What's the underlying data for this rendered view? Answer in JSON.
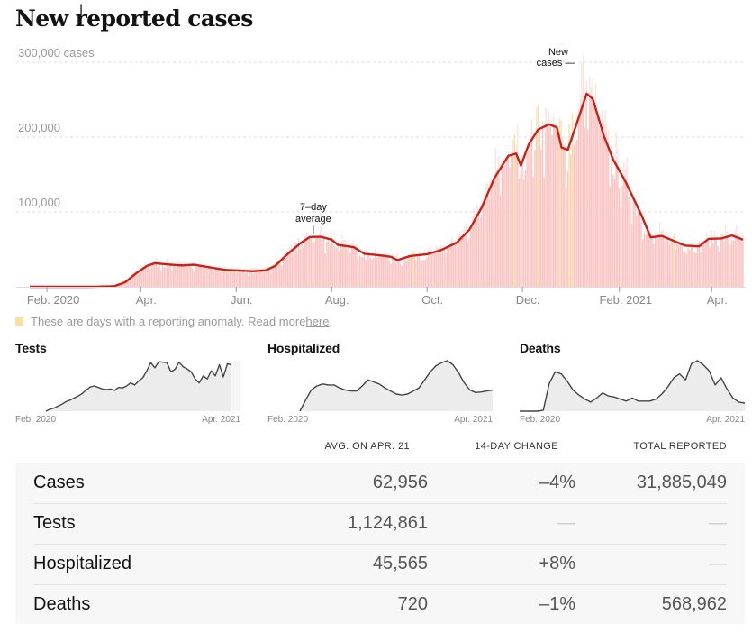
{
  "page": {
    "title": "New reported cases",
    "legend_text": "These are days with a reporting anomaly. Read more ",
    "legend_link": "here",
    "legend_suffix": ".",
    "colors": {
      "bar": "#f8c8c6",
      "bar_light": "#fbe3e1",
      "anomaly": "#fbe0a0",
      "line": "#cf1f14",
      "grid": "#dddddd",
      "small_fill": "#ececec",
      "small_line": "#444444",
      "table_bg": "#f7f7f7"
    }
  },
  "chart_data": [
    {
      "id": "new-cases",
      "type": "bar",
      "title": "New reported cases",
      "xlabel": "",
      "ylabel": "cases",
      "ylim": [
        0,
        300000
      ],
      "yticks": [
        {
          "value": 300000,
          "label": "300,000 cases"
        },
        {
          "value": 200000,
          "label": "200,000"
        },
        {
          "value": 100000,
          "label": "100,000"
        }
      ],
      "grid": true,
      "x_start": "2020-01-21",
      "x_end": "2021-04-21",
      "xticks": [
        {
          "date": "2020-02-01",
          "label": "Feb. 2020"
        },
        {
          "date": "2020-04-01",
          "label": "Apr."
        },
        {
          "date": "2020-06-01",
          "label": "Jun."
        },
        {
          "date": "2020-08-01",
          "label": "Aug."
        },
        {
          "date": "2020-10-01",
          "label": "Oct."
        },
        {
          "date": "2020-12-01",
          "label": "Dec."
        },
        {
          "date": "2021-02-01",
          "label": "Feb. 2021"
        },
        {
          "date": "2021-04-01",
          "label": "Apr."
        }
      ],
      "annotations": [
        {
          "text": [
            "7–day",
            "average"
          ],
          "date": "2020-07-22",
          "value": 67000,
          "series": "7-day average"
        },
        {
          "text": [
            "New",
            "cases —"
          ],
          "date": "2021-01-08",
          "value": 300000,
          "series": "New cases"
        }
      ],
      "series": [
        {
          "name": "7-day average",
          "type": "line",
          "points": [
            [
              "2020-01-21",
              0
            ],
            [
              "2020-03-01",
              10
            ],
            [
              "2020-03-15",
              700
            ],
            [
              "2020-03-22",
              6000
            ],
            [
              "2020-03-29",
              18000
            ],
            [
              "2020-04-05",
              28000
            ],
            [
              "2020-04-10",
              31500
            ],
            [
              "2020-04-20",
              29500
            ],
            [
              "2020-04-28",
              28500
            ],
            [
              "2020-05-05",
              29500
            ],
            [
              "2020-05-15",
              26000
            ],
            [
              "2020-05-25",
              22500
            ],
            [
              "2020-06-05",
              21500
            ],
            [
              "2020-06-12",
              20800
            ],
            [
              "2020-06-20",
              22000
            ],
            [
              "2020-06-26",
              28000
            ],
            [
              "2020-07-04",
              44000
            ],
            [
              "2020-07-12",
              58000
            ],
            [
              "2020-07-18",
              66500
            ],
            [
              "2020-07-25",
              66800
            ],
            [
              "2020-08-01",
              63000
            ],
            [
              "2020-08-05",
              56000
            ],
            [
              "2020-08-15",
              53000
            ],
            [
              "2020-08-22",
              44000
            ],
            [
              "2020-09-01",
              42000
            ],
            [
              "2020-09-08",
              40000
            ],
            [
              "2020-09-12",
              35500
            ],
            [
              "2020-09-20",
              41000
            ],
            [
              "2020-10-01",
              43500
            ],
            [
              "2020-10-10",
              49000
            ],
            [
              "2020-10-20",
              59000
            ],
            [
              "2020-10-28",
              76000
            ],
            [
              "2020-11-05",
              106000
            ],
            [
              "2020-11-13",
              145000
            ],
            [
              "2020-11-22",
              175000
            ],
            [
              "2020-11-27",
              178000
            ],
            [
              "2020-11-30",
              162000
            ],
            [
              "2020-12-05",
              190000
            ],
            [
              "2020-12-11",
              210000
            ],
            [
              "2020-12-14",
              213000
            ],
            [
              "2020-12-18",
              217000
            ],
            [
              "2020-12-23",
              213000
            ],
            [
              "2020-12-26",
              186000
            ],
            [
              "2020-12-30",
              183000
            ],
            [
              "2021-01-05",
              220000
            ],
            [
              "2021-01-11",
              258000
            ],
            [
              "2021-01-15",
              251000
            ],
            [
              "2021-01-22",
              202000
            ],
            [
              "2021-01-28",
              170000
            ],
            [
              "2021-02-05",
              140000
            ],
            [
              "2021-02-15",
              96000
            ],
            [
              "2021-02-21",
              66000
            ],
            [
              "2021-02-28",
              68000
            ],
            [
              "2021-03-08",
              61000
            ],
            [
              "2021-03-15",
              55000
            ],
            [
              "2021-03-24",
              54000
            ],
            [
              "2021-03-30",
              64000
            ],
            [
              "2021-04-07",
              64500
            ],
            [
              "2021-04-14",
              68500
            ],
            [
              "2021-04-21",
              62956
            ]
          ]
        },
        {
          "name": "New cases",
          "type": "bar",
          "description": "daily reported cases, scattered around the 7-day average",
          "peak_value": 300000,
          "anomaly_dates": [
            "2020-09-22",
            "2020-11-26",
            "2020-12-11",
            "2020-12-25",
            "2020-12-31",
            "2021-01-02",
            "2021-03-08"
          ]
        }
      ]
    },
    {
      "id": "tests",
      "type": "area",
      "title": "Tests",
      "x_start_label": "Feb. 2020",
      "x_end_label": "Apr. 2021",
      "relative_values": [
        0.0,
        0.04,
        0.06,
        0.1,
        0.14,
        0.19,
        0.22,
        0.26,
        0.3,
        0.35,
        0.42,
        0.48,
        0.5,
        0.47,
        0.44,
        0.43,
        0.44,
        0.41,
        0.47,
        0.46,
        0.5,
        0.56,
        0.52,
        0.6,
        0.66,
        0.8,
        0.96,
        0.86,
        0.98,
        0.97,
        0.96,
        0.78,
        0.83,
        0.97,
        0.88,
        0.84,
        0.78,
        0.64,
        0.56,
        0.7,
        0.64,
        0.8,
        0.7,
        0.92,
        0.68,
        0.94,
        0.92
      ],
      "preliminary_tail": true
    },
    {
      "id": "hospitalized",
      "type": "area",
      "title": "Hospitalized",
      "x_start_label": "Feb. 2020",
      "x_end_label": "Apr. 2021",
      "relative_values": [
        0.0,
        0.22,
        0.42,
        0.5,
        0.54,
        0.52,
        0.52,
        0.46,
        0.42,
        0.4,
        0.4,
        0.5,
        0.62,
        0.58,
        0.54,
        0.46,
        0.4,
        0.34,
        0.32,
        0.34,
        0.4,
        0.46,
        0.62,
        0.78,
        0.9,
        0.96,
        1.0,
        0.92,
        0.76,
        0.56,
        0.42,
        0.37,
        0.38,
        0.4,
        0.42
      ],
      "preliminary_tail": false
    },
    {
      "id": "deaths",
      "type": "area",
      "title": "Deaths",
      "x_start_label": "Feb. 2020",
      "x_end_label": "Apr. 2021",
      "relative_values": [
        0.0,
        0.0,
        0.0,
        0.0,
        0.02,
        0.55,
        0.78,
        0.74,
        0.6,
        0.42,
        0.32,
        0.24,
        0.18,
        0.26,
        0.36,
        0.3,
        0.28,
        0.24,
        0.2,
        0.26,
        0.2,
        0.2,
        0.2,
        0.24,
        0.34,
        0.48,
        0.66,
        0.74,
        0.62,
        0.94,
        1.0,
        0.92,
        0.8,
        0.52,
        0.66,
        0.44,
        0.26,
        0.18,
        0.16
      ],
      "preliminary_tail": false
    },
    {
      "id": "summary-table",
      "type": "table",
      "columns": [
        "",
        "AVG. ON APR. 21",
        "14-DAY CHANGE",
        "TOTAL REPORTED"
      ],
      "rows": [
        {
          "label": "Cases",
          "avg": "62,956",
          "change": "–4%",
          "total": "31,885,049"
        },
        {
          "label": "Tests",
          "avg": "1,124,861",
          "change": "—",
          "total": "—"
        },
        {
          "label": "Hospitalized",
          "avg": "45,565",
          "change": "+8%",
          "total": "—"
        },
        {
          "label": "Deaths",
          "avg": "720",
          "change": "–1%",
          "total": "568,962"
        }
      ]
    }
  ]
}
